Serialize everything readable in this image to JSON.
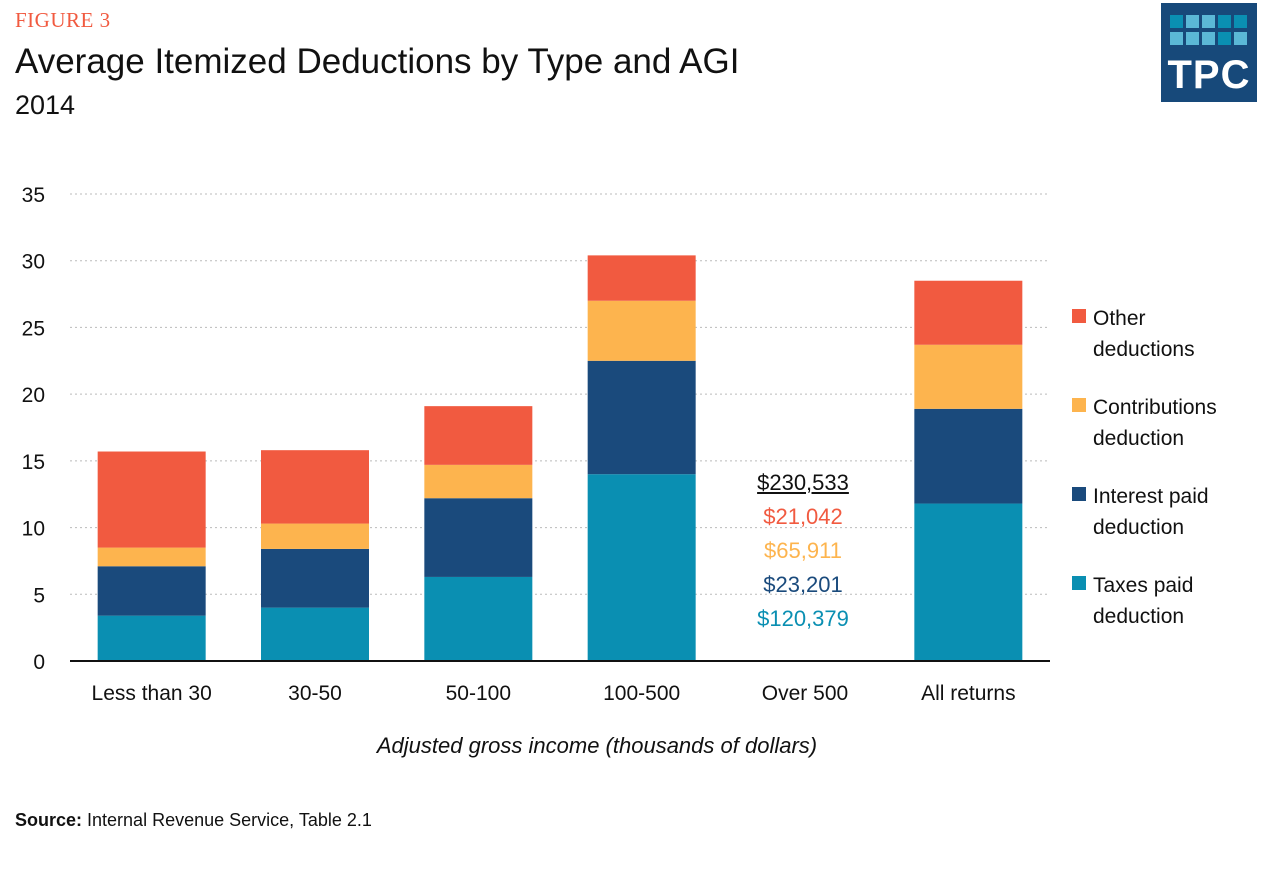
{
  "header": {
    "figure_label": "FIGURE 3",
    "title": "Average Itemized Deductions by Type and AGI",
    "subtitle": "2014"
  },
  "logo": {
    "text": "TPC",
    "colors": [
      "#0a8fb2",
      "#5bb8d6",
      "#17497a"
    ]
  },
  "source": {
    "label": "Source:",
    "text": " Internal Revenue Service, Table 2.1"
  },
  "chart_data": {
    "type": "bar",
    "stacked": true,
    "title": "Average Itemized Deductions by Type and AGI",
    "subtitle": "2014",
    "xlabel": "Adjusted gross income (thousands of dollars)",
    "ylabel": "",
    "ylim": [
      0,
      35
    ],
    "yticks": [
      0,
      5,
      10,
      15,
      20,
      25,
      30,
      35
    ],
    "grid": true,
    "legend_position": "right",
    "categories": [
      "Less than 30",
      "30-50",
      "50-100",
      "100-500",
      "Over 500",
      "All returns"
    ],
    "series": [
      {
        "name": "Taxes paid deduction",
        "color": "#0a8fb2",
        "values": [
          3.4,
          4.0,
          6.3,
          14.0,
          null,
          11.8
        ]
      },
      {
        "name": "Interest paid deduction",
        "color": "#1a4a7c",
        "values": [
          3.7,
          4.4,
          5.9,
          8.5,
          null,
          7.1
        ]
      },
      {
        "name": "Contributions deduction",
        "color": "#fdb44e",
        "values": [
          1.4,
          1.9,
          2.5,
          4.5,
          null,
          4.8
        ]
      },
      {
        "name": "Other deductions",
        "color": "#f15a40",
        "values": [
          7.2,
          5.5,
          4.4,
          3.4,
          null,
          4.8
        ]
      }
    ],
    "legend_labels": [
      {
        "line1": "Other",
        "line2": "deductions"
      },
      {
        "line1": "Contributions",
        "line2": "deduction"
      },
      {
        "line1": "Interest paid",
        "line2": "deduction"
      },
      {
        "line1": "Taxes paid",
        "line2": "deduction"
      }
    ],
    "annotation_over_500": {
      "total": "$230,533",
      "other": "$21,042",
      "contributions": "$65,911",
      "interest": "$23,201",
      "taxes": "$120,379"
    }
  }
}
